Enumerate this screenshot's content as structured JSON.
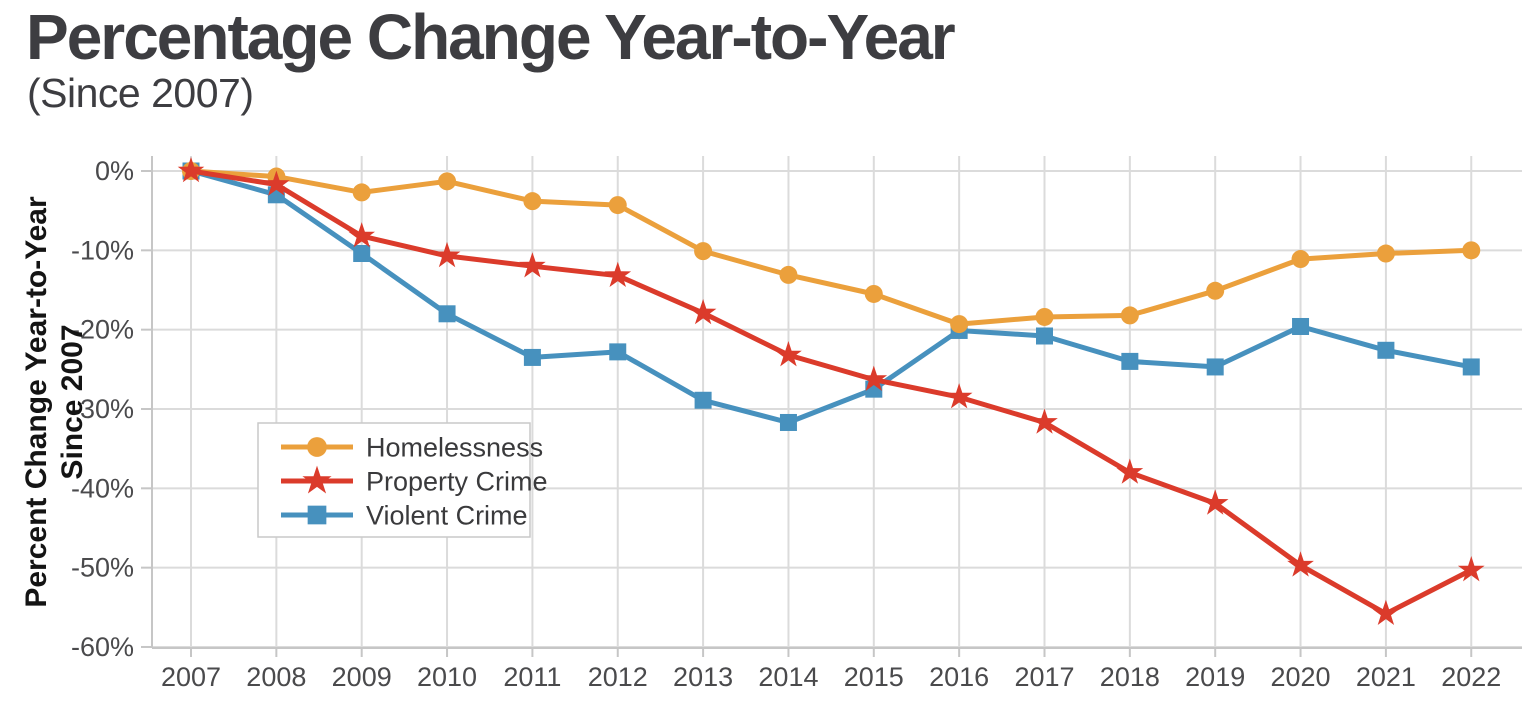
{
  "header": {
    "title": "Percentage Change Year-to-Year",
    "subtitle": "(Since 2007)"
  },
  "colors": {
    "title_text": "#3D3D41",
    "tick_text": "#4A4A4C",
    "axis_title_text": "#141414",
    "gridline": "#DBDBDB",
    "spine": "#C6C6C6",
    "legend_border": "#C9C9C9",
    "legend_text": "#3A3A3C",
    "background": "#FFFFFF",
    "homelessness": "#EBA03C",
    "property_crime": "#DB3B2B",
    "violent_crime": "#4791BE"
  },
  "chart_data": {
    "type": "line",
    "title": "Percentage Change Year-to-Year",
    "subtitle": "(Since 2007)",
    "xlabel": "",
    "ylabel_line1": "Percent Change Year-to-Year",
    "ylabel_line2": "Since 2007",
    "x": [
      2007,
      2008,
      2009,
      2010,
      2011,
      2012,
      2013,
      2014,
      2015,
      2016,
      2017,
      2018,
      2019,
      2020,
      2021,
      2022
    ],
    "series": [
      {
        "name": "Homelessness",
        "marker": "circle",
        "color": "#EBA03C",
        "values": [
          0,
          -0.7,
          -2.7,
          -1.3,
          -3.8,
          -4.3,
          -10.1,
          -13.1,
          -15.5,
          -19.3,
          -18.4,
          -18.2,
          -15.1,
          -11.1,
          -10.4,
          -10.0
        ]
      },
      {
        "name": "Property Crime",
        "marker": "star",
        "color": "#DB3B2B",
        "values": [
          0,
          -1.7,
          -8.2,
          -10.7,
          -12.0,
          -13.2,
          -17.9,
          -23.2,
          -26.3,
          -28.5,
          -31.7,
          -38.0,
          -41.9,
          -49.7,
          -55.8,
          -50.3
        ]
      },
      {
        "name": "Violent Crime",
        "marker": "square",
        "color": "#4791BE",
        "values": [
          0,
          -3.0,
          -10.4,
          -18.0,
          -23.5,
          -22.8,
          -28.9,
          -31.7,
          -27.5,
          -20.1,
          -20.8,
          -24.0,
          -24.7,
          -19.6,
          -22.6,
          -24.7
        ]
      }
    ],
    "draw_order": [
      2,
      0,
      1
    ],
    "yticks": [
      {
        "label": "0%",
        "value": 0
      },
      {
        "label": "-10%",
        "value": -10
      },
      {
        "label": "-20%",
        "value": -20
      },
      {
        "label": "-30%",
        "value": -30
      },
      {
        "label": "-40%",
        "value": -40
      },
      {
        "label": "-50%",
        "value": -50
      },
      {
        "label": "-60%",
        "value": -60
      }
    ],
    "ylim": [
      -60,
      0
    ],
    "grid": true,
    "legend_position": "inside-left-middle"
  }
}
